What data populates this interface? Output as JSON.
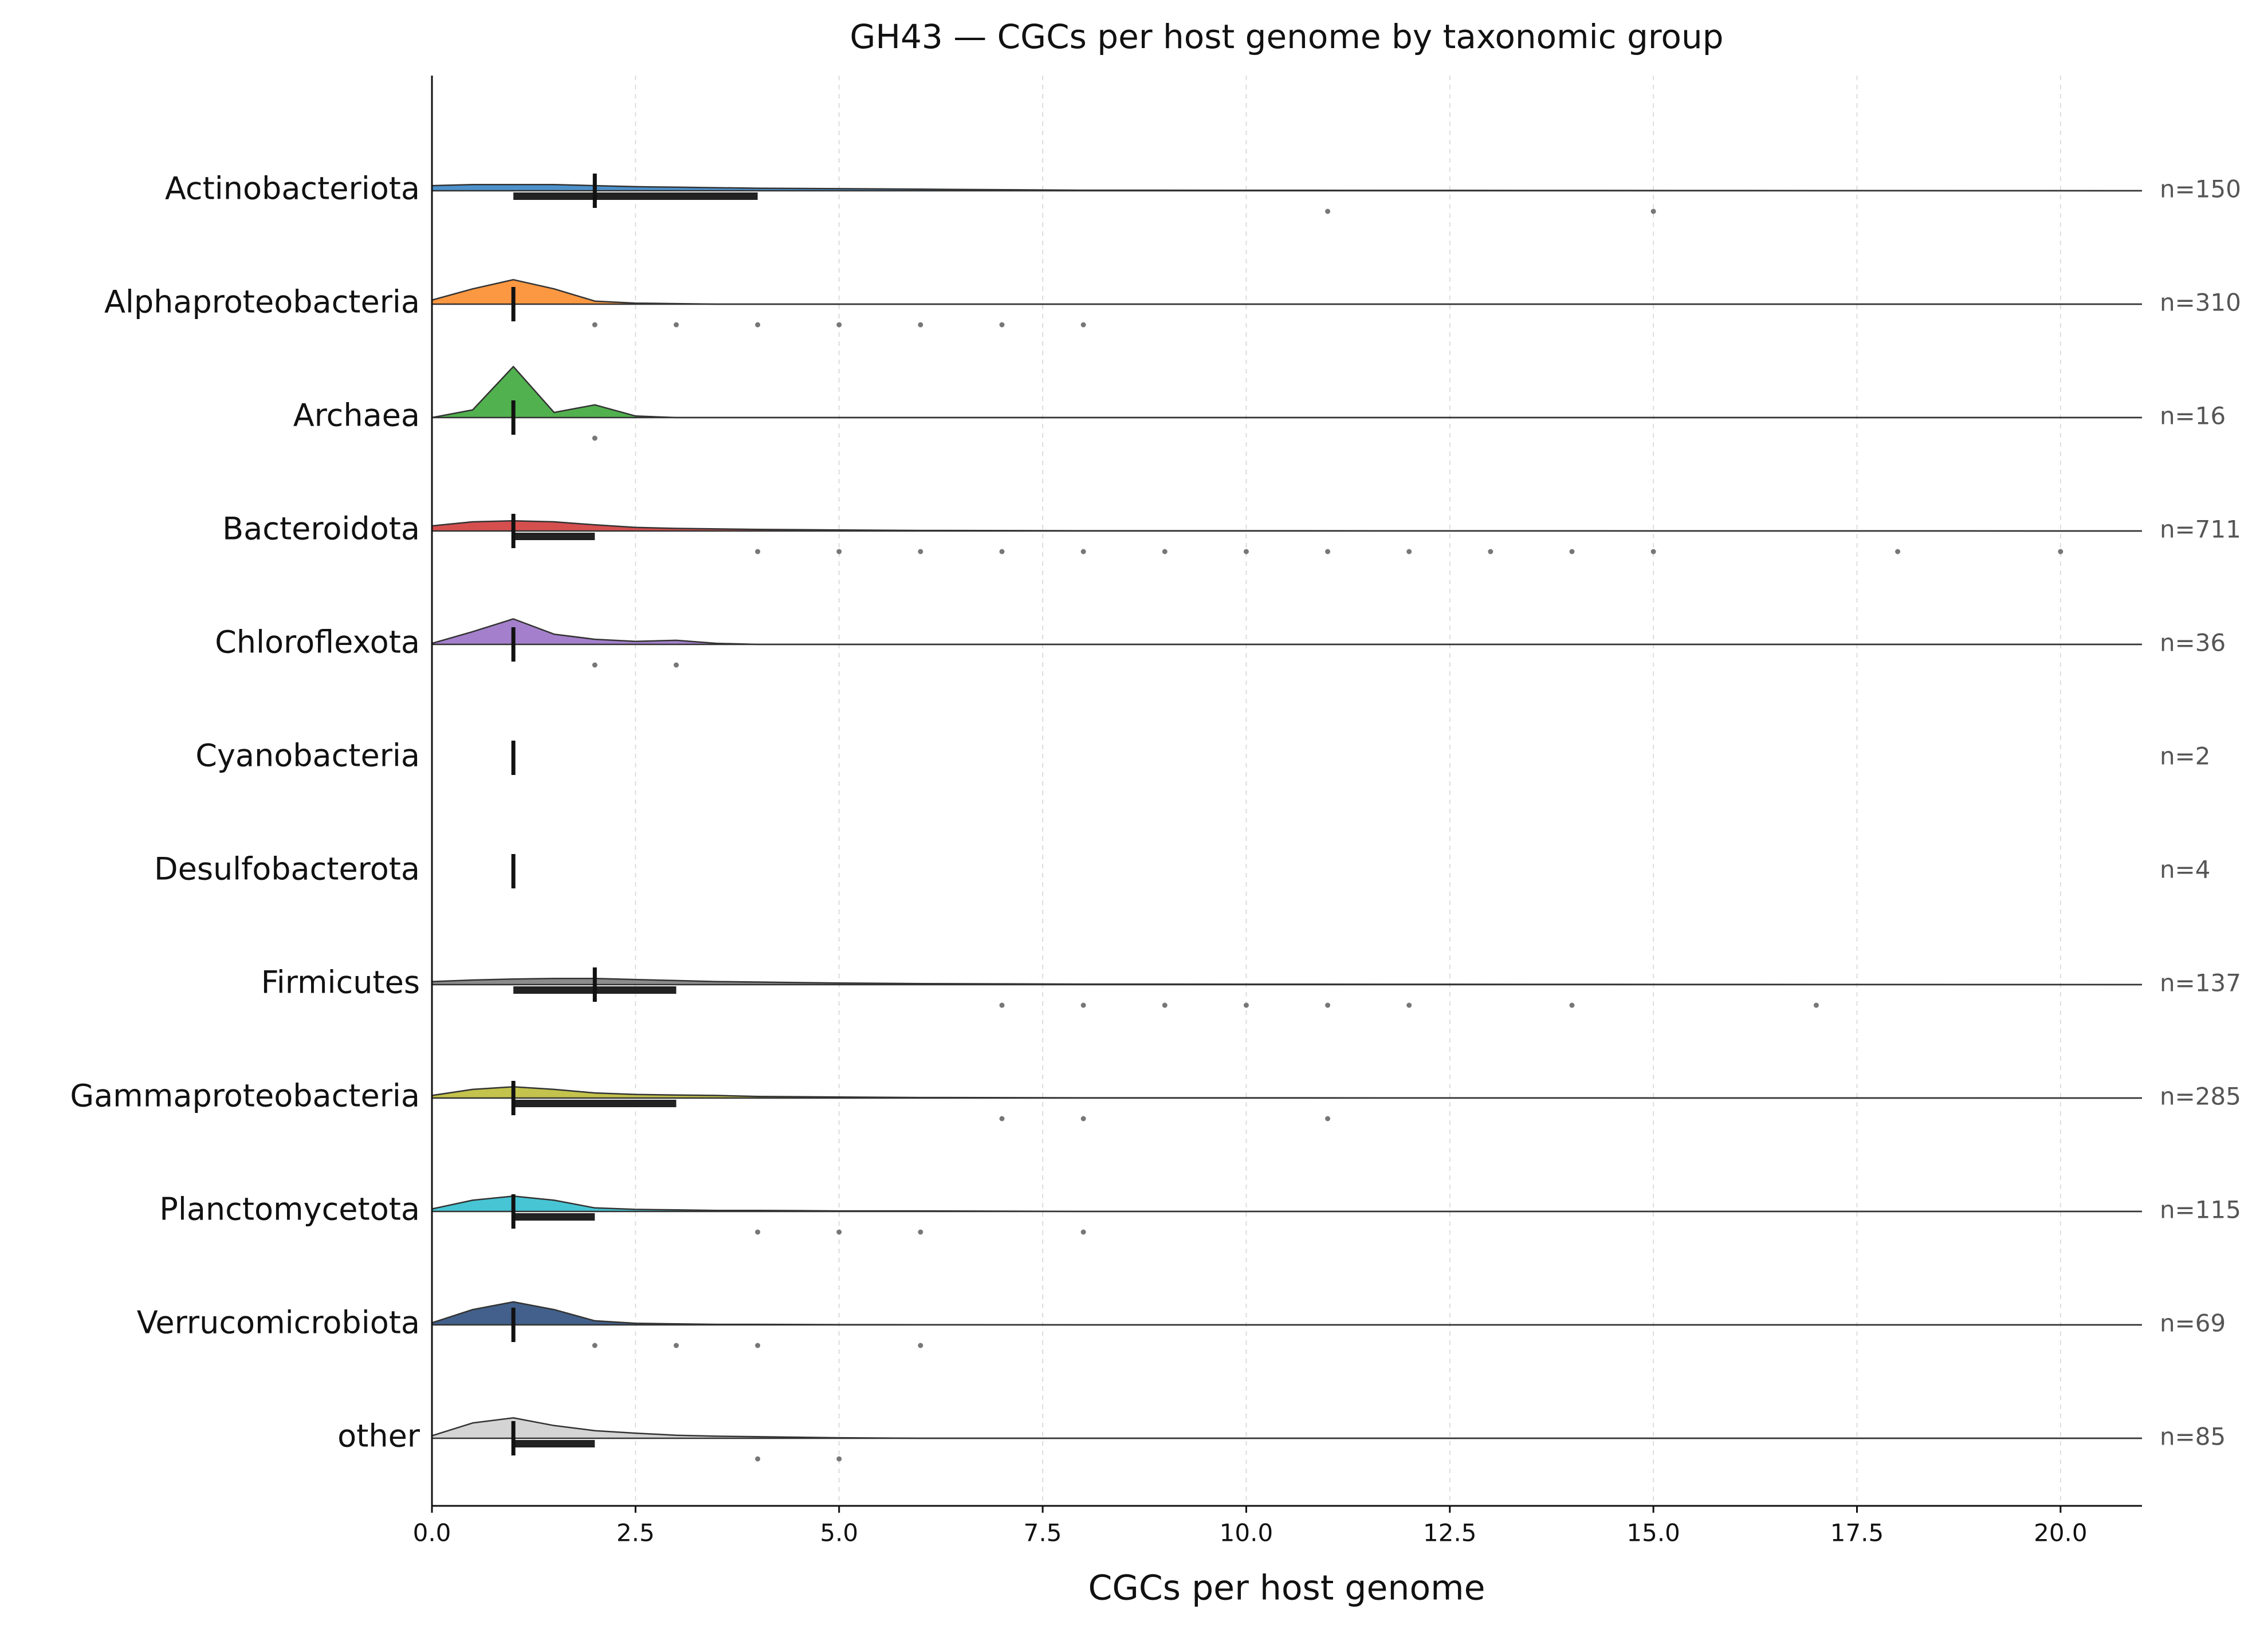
{
  "chart_data": {
    "type": "ridgeline",
    "title": "GH43 — CGCs per host genome by taxonomic group",
    "x_label": "CGCs per host genome",
    "xlim": [
      0,
      21
    ],
    "xticks": [
      {
        "value": 0,
        "label": "0.0"
      },
      {
        "value": 2.5,
        "label": "2.5"
      },
      {
        "value": 5,
        "label": "5.0"
      },
      {
        "value": 7.5,
        "label": "7.5"
      },
      {
        "value": 10,
        "label": "10.0"
      },
      {
        "value": 12.5,
        "label": "12.5"
      },
      {
        "value": 15,
        "label": "15.0"
      },
      {
        "value": 17.5,
        "label": "17.5"
      },
      {
        "value": 20,
        "label": "20.0"
      }
    ],
    "grid": true,
    "density_x": [
      0,
      0.5,
      1,
      1.5,
      2,
      2.5,
      3,
      3.5,
      4,
      5,
      6,
      8,
      21
    ],
    "series": [
      {
        "name": "Actinobacteriota",
        "color": "#3a85c4",
        "n_label": "n=150",
        "median": 2,
        "iqr": [
          1,
          4
        ],
        "outliers": [
          11,
          15
        ],
        "density": [
          0.1,
          0.12,
          0.12,
          0.12,
          0.1,
          0.08,
          0.07,
          0.06,
          0.05,
          0.04,
          0.03,
          0.01,
          0
        ]
      },
      {
        "name": "Alphaproteobacteria",
        "color": "#fd8d2e",
        "n_label": "n=310",
        "median": 1,
        "outliers": [
          2,
          3,
          4,
          5,
          6,
          7,
          8
        ],
        "density": [
          0.08,
          0.3,
          0.48,
          0.3,
          0.06,
          0.02,
          0.01,
          0,
          0,
          0,
          0,
          0,
          0
        ]
      },
      {
        "name": "Archaea",
        "color": "#3ea83b",
        "n_label": "n=16",
        "median": 1,
        "outliers": [
          2
        ],
        "density": [
          0,
          0.15,
          1,
          0.1,
          0.25,
          0.03,
          0,
          0,
          0,
          0,
          0,
          0,
          0
        ]
      },
      {
        "name": "Bacteroidota",
        "color": "#d23c3c",
        "n_label": "n=711",
        "median": 1,
        "iqr": [
          1,
          2
        ],
        "outliers": [
          4,
          5,
          6,
          7,
          8,
          9,
          10,
          11,
          12,
          13,
          14,
          15,
          18,
          20
        ],
        "density": [
          0.1,
          0.18,
          0.2,
          0.18,
          0.12,
          0.07,
          0.05,
          0.04,
          0.03,
          0.02,
          0.01,
          0.005,
          0
        ]
      },
      {
        "name": "Chloroflexota",
        "color": "#9a72c6",
        "n_label": "n=36",
        "median": 1,
        "outliers": [
          2,
          3
        ],
        "density": [
          0.02,
          0.25,
          0.5,
          0.2,
          0.1,
          0.06,
          0.08,
          0.02,
          0,
          0,
          0,
          0,
          0
        ]
      },
      {
        "name": "Cyanobacteria",
        "color": "#8c564b",
        "n_label": "n=2",
        "median": 1
      },
      {
        "name": "Desulfobacterota",
        "color": "#e377c2",
        "n_label": "n=4",
        "median": 1
      },
      {
        "name": "Firmicutes",
        "color": "#7f7f7f",
        "n_label": "n=137",
        "median": 2,
        "iqr": [
          1,
          3
        ],
        "outliers": [
          7,
          8,
          9,
          10,
          11,
          12,
          14,
          17
        ],
        "density": [
          0.06,
          0.09,
          0.11,
          0.12,
          0.12,
          0.1,
          0.08,
          0.06,
          0.05,
          0.03,
          0.02,
          0.01,
          0
        ]
      },
      {
        "name": "Gammaproteobacteria",
        "color": "#bcbd3a",
        "n_label": "n=285",
        "median": 1,
        "iqr": [
          1,
          3
        ],
        "outliers": [
          7,
          8,
          11
        ],
        "density": [
          0.05,
          0.17,
          0.22,
          0.17,
          0.1,
          0.07,
          0.06,
          0.05,
          0.03,
          0.02,
          0.01,
          0.005,
          0
        ]
      },
      {
        "name": "Planctomycetota",
        "color": "#33bfcf",
        "n_label": "n=115",
        "median": 1,
        "iqr": [
          1,
          2
        ],
        "outliers": [
          4,
          5,
          6,
          8
        ],
        "density": [
          0.05,
          0.22,
          0.3,
          0.22,
          0.07,
          0.04,
          0.03,
          0.02,
          0.02,
          0.01,
          0.01,
          0,
          0
        ]
      },
      {
        "name": "Verrucomicrobiota",
        "color": "#2e4f7e",
        "n_label": "n=69",
        "median": 1,
        "outliers": [
          2,
          3,
          4,
          6
        ],
        "density": [
          0.04,
          0.3,
          0.45,
          0.3,
          0.08,
          0.03,
          0.02,
          0.01,
          0.01,
          0.005,
          0.003,
          0,
          0
        ]
      },
      {
        "name": "other",
        "color": "#cfcfcf",
        "n_label": "n=85",
        "median": 1,
        "iqr": [
          1,
          2
        ],
        "outliers": [
          4,
          5
        ],
        "density": [
          0.05,
          0.3,
          0.4,
          0.25,
          0.15,
          0.1,
          0.06,
          0.04,
          0.03,
          0.01,
          0,
          0,
          0
        ]
      }
    ]
  }
}
